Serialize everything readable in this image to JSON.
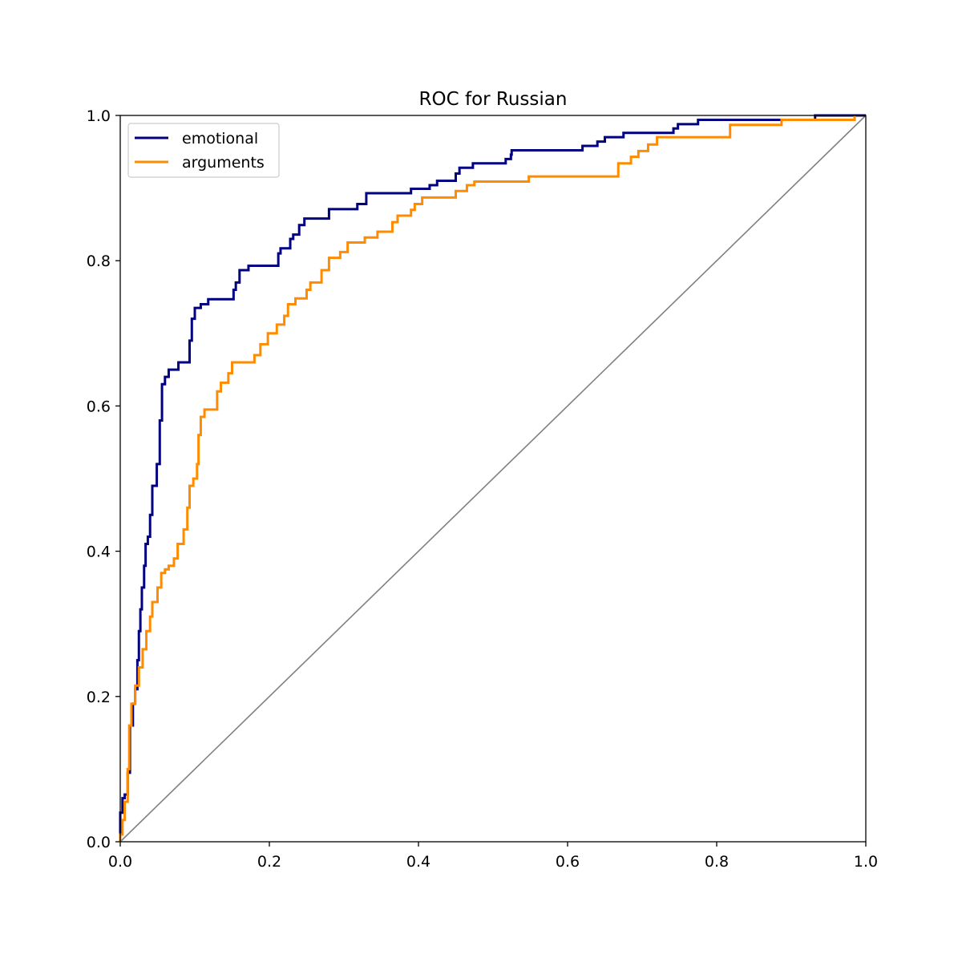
{
  "chart_data": {
    "type": "line",
    "title": "ROC for Russian",
    "xlabel": "",
    "ylabel": "",
    "xlim": [
      0.0,
      1.0
    ],
    "ylim": [
      0.0,
      1.0
    ],
    "x_ticks": [
      "0.0",
      "0.2",
      "0.4",
      "0.6",
      "0.8",
      "1.0"
    ],
    "y_ticks": [
      "0.0",
      "0.2",
      "0.4",
      "0.6",
      "0.8",
      "1.0"
    ],
    "grid": false,
    "legend_position": "upper-left",
    "diagonal_reference": {
      "color": "#808080",
      "points": [
        [
          0,
          0
        ],
        [
          1,
          1
        ]
      ]
    },
    "series": [
      {
        "name": "emotional",
        "color": "#000080",
        "points": [
          [
            0.0,
            0.0
          ],
          [
            0.0,
            0.04
          ],
          [
            0.003,
            0.04
          ],
          [
            0.003,
            0.06
          ],
          [
            0.006,
            0.06
          ],
          [
            0.006,
            0.065
          ],
          [
            0.01,
            0.065
          ],
          [
            0.01,
            0.095
          ],
          [
            0.013,
            0.095
          ],
          [
            0.013,
            0.16
          ],
          [
            0.017,
            0.16
          ],
          [
            0.017,
            0.19
          ],
          [
            0.02,
            0.19
          ],
          [
            0.02,
            0.21
          ],
          [
            0.023,
            0.21
          ],
          [
            0.023,
            0.25
          ],
          [
            0.025,
            0.25
          ],
          [
            0.025,
            0.29
          ],
          [
            0.027,
            0.29
          ],
          [
            0.027,
            0.32
          ],
          [
            0.029,
            0.32
          ],
          [
            0.029,
            0.35
          ],
          [
            0.032,
            0.35
          ],
          [
            0.032,
            0.38
          ],
          [
            0.034,
            0.38
          ],
          [
            0.034,
            0.41
          ],
          [
            0.037,
            0.41
          ],
          [
            0.037,
            0.42
          ],
          [
            0.04,
            0.42
          ],
          [
            0.04,
            0.45
          ],
          [
            0.043,
            0.45
          ],
          [
            0.043,
            0.49
          ],
          [
            0.049,
            0.49
          ],
          [
            0.049,
            0.52
          ],
          [
            0.053,
            0.52
          ],
          [
            0.053,
            0.58
          ],
          [
            0.056,
            0.58
          ],
          [
            0.056,
            0.63
          ],
          [
            0.06,
            0.63
          ],
          [
            0.06,
            0.64
          ],
          [
            0.065,
            0.64
          ],
          [
            0.065,
            0.65
          ],
          [
            0.078,
            0.65
          ],
          [
            0.078,
            0.66
          ],
          [
            0.093,
            0.66
          ],
          [
            0.093,
            0.69
          ],
          [
            0.096,
            0.69
          ],
          [
            0.096,
            0.72
          ],
          [
            0.1,
            0.72
          ],
          [
            0.1,
            0.735
          ],
          [
            0.108,
            0.735
          ],
          [
            0.108,
            0.74
          ],
          [
            0.118,
            0.74
          ],
          [
            0.118,
            0.747
          ],
          [
            0.152,
            0.747
          ],
          [
            0.152,
            0.76
          ],
          [
            0.155,
            0.76
          ],
          [
            0.155,
            0.77
          ],
          [
            0.16,
            0.77
          ],
          [
            0.16,
            0.787
          ],
          [
            0.172,
            0.787
          ],
          [
            0.172,
            0.793
          ],
          [
            0.212,
            0.793
          ],
          [
            0.212,
            0.81
          ],
          [
            0.215,
            0.81
          ],
          [
            0.215,
            0.817
          ],
          [
            0.228,
            0.817
          ],
          [
            0.228,
            0.83
          ],
          [
            0.232,
            0.83
          ],
          [
            0.232,
            0.836
          ],
          [
            0.24,
            0.836
          ],
          [
            0.24,
            0.849
          ],
          [
            0.247,
            0.849
          ],
          [
            0.247,
            0.858
          ],
          [
            0.28,
            0.858
          ],
          [
            0.28,
            0.871
          ],
          [
            0.318,
            0.871
          ],
          [
            0.318,
            0.878
          ],
          [
            0.33,
            0.878
          ],
          [
            0.33,
            0.893
          ],
          [
            0.39,
            0.893
          ],
          [
            0.39,
            0.899
          ],
          [
            0.415,
            0.899
          ],
          [
            0.415,
            0.904
          ],
          [
            0.425,
            0.904
          ],
          [
            0.425,
            0.91
          ],
          [
            0.45,
            0.91
          ],
          [
            0.45,
            0.92
          ],
          [
            0.455,
            0.92
          ],
          [
            0.455,
            0.928
          ],
          [
            0.473,
            0.928
          ],
          [
            0.473,
            0.934
          ],
          [
            0.517,
            0.934
          ],
          [
            0.517,
            0.94
          ],
          [
            0.524,
            0.94
          ],
          [
            0.524,
            0.946
          ],
          [
            0.525,
            0.946
          ],
          [
            0.525,
            0.952
          ],
          [
            0.62,
            0.952
          ],
          [
            0.62,
            0.958
          ],
          [
            0.64,
            0.958
          ],
          [
            0.64,
            0.964
          ],
          [
            0.65,
            0.964
          ],
          [
            0.65,
            0.97
          ],
          [
            0.675,
            0.97
          ],
          [
            0.675,
            0.976
          ],
          [
            0.742,
            0.976
          ],
          [
            0.742,
            0.982
          ],
          [
            0.748,
            0.982
          ],
          [
            0.748,
            0.988
          ],
          [
            0.775,
            0.988
          ],
          [
            0.775,
            0.994
          ],
          [
            0.932,
            0.994
          ],
          [
            0.932,
            1.0
          ],
          [
            1.0,
            1.0
          ]
        ]
      },
      {
        "name": "arguments",
        "color": "#FF8C00",
        "points": [
          [
            0.0,
            0.0
          ],
          [
            0.0,
            0.01
          ],
          [
            0.003,
            0.01
          ],
          [
            0.003,
            0.03
          ],
          [
            0.006,
            0.03
          ],
          [
            0.006,
            0.055
          ],
          [
            0.01,
            0.055
          ],
          [
            0.01,
            0.1
          ],
          [
            0.012,
            0.1
          ],
          [
            0.012,
            0.16
          ],
          [
            0.015,
            0.16
          ],
          [
            0.015,
            0.19
          ],
          [
            0.02,
            0.19
          ],
          [
            0.02,
            0.215
          ],
          [
            0.025,
            0.215
          ],
          [
            0.025,
            0.24
          ],
          [
            0.03,
            0.24
          ],
          [
            0.03,
            0.265
          ],
          [
            0.035,
            0.265
          ],
          [
            0.035,
            0.29
          ],
          [
            0.04,
            0.29
          ],
          [
            0.04,
            0.31
          ],
          [
            0.043,
            0.31
          ],
          [
            0.043,
            0.33
          ],
          [
            0.05,
            0.33
          ],
          [
            0.05,
            0.35
          ],
          [
            0.055,
            0.35
          ],
          [
            0.055,
            0.37
          ],
          [
            0.06,
            0.37
          ],
          [
            0.06,
            0.375
          ],
          [
            0.065,
            0.375
          ],
          [
            0.065,
            0.38
          ],
          [
            0.072,
            0.38
          ],
          [
            0.072,
            0.39
          ],
          [
            0.077,
            0.39
          ],
          [
            0.077,
            0.41
          ],
          [
            0.085,
            0.41
          ],
          [
            0.085,
            0.43
          ],
          [
            0.09,
            0.43
          ],
          [
            0.09,
            0.46
          ],
          [
            0.093,
            0.46
          ],
          [
            0.093,
            0.49
          ],
          [
            0.098,
            0.49
          ],
          [
            0.098,
            0.5
          ],
          [
            0.103,
            0.5
          ],
          [
            0.103,
            0.52
          ],
          [
            0.105,
            0.52
          ],
          [
            0.105,
            0.56
          ],
          [
            0.108,
            0.56
          ],
          [
            0.108,
            0.585
          ],
          [
            0.113,
            0.585
          ],
          [
            0.113,
            0.595
          ],
          [
            0.13,
            0.595
          ],
          [
            0.13,
            0.62
          ],
          [
            0.135,
            0.62
          ],
          [
            0.135,
            0.632
          ],
          [
            0.145,
            0.632
          ],
          [
            0.145,
            0.645
          ],
          [
            0.15,
            0.645
          ],
          [
            0.15,
            0.66
          ],
          [
            0.18,
            0.66
          ],
          [
            0.18,
            0.67
          ],
          [
            0.188,
            0.67
          ],
          [
            0.188,
            0.685
          ],
          [
            0.198,
            0.685
          ],
          [
            0.198,
            0.7
          ],
          [
            0.21,
            0.7
          ],
          [
            0.21,
            0.712
          ],
          [
            0.22,
            0.712
          ],
          [
            0.22,
            0.724
          ],
          [
            0.225,
            0.724
          ],
          [
            0.225,
            0.74
          ],
          [
            0.235,
            0.74
          ],
          [
            0.235,
            0.748
          ],
          [
            0.25,
            0.748
          ],
          [
            0.25,
            0.76
          ],
          [
            0.255,
            0.76
          ],
          [
            0.255,
            0.77
          ],
          [
            0.27,
            0.77
          ],
          [
            0.27,
            0.787
          ],
          [
            0.28,
            0.787
          ],
          [
            0.28,
            0.804
          ],
          [
            0.295,
            0.804
          ],
          [
            0.295,
            0.812
          ],
          [
            0.305,
            0.812
          ],
          [
            0.305,
            0.825
          ],
          [
            0.328,
            0.825
          ],
          [
            0.328,
            0.832
          ],
          [
            0.345,
            0.832
          ],
          [
            0.345,
            0.84
          ],
          [
            0.365,
            0.84
          ],
          [
            0.365,
            0.853
          ],
          [
            0.372,
            0.853
          ],
          [
            0.372,
            0.862
          ],
          [
            0.39,
            0.862
          ],
          [
            0.39,
            0.87
          ],
          [
            0.395,
            0.87
          ],
          [
            0.395,
            0.878
          ],
          [
            0.405,
            0.878
          ],
          [
            0.405,
            0.887
          ],
          [
            0.45,
            0.887
          ],
          [
            0.45,
            0.896
          ],
          [
            0.465,
            0.896
          ],
          [
            0.465,
            0.904
          ],
          [
            0.475,
            0.904
          ],
          [
            0.475,
            0.909
          ],
          [
            0.548,
            0.909
          ],
          [
            0.548,
            0.916
          ],
          [
            0.668,
            0.916
          ],
          [
            0.668,
            0.934
          ],
          [
            0.685,
            0.934
          ],
          [
            0.685,
            0.943
          ],
          [
            0.695,
            0.943
          ],
          [
            0.695,
            0.951
          ],
          [
            0.708,
            0.951
          ],
          [
            0.708,
            0.96
          ],
          [
            0.72,
            0.96
          ],
          [
            0.72,
            0.97
          ],
          [
            0.818,
            0.97
          ],
          [
            0.818,
            0.987
          ],
          [
            0.887,
            0.987
          ],
          [
            0.887,
            0.994
          ],
          [
            0.985,
            0.994
          ],
          [
            0.985,
            1.0
          ]
        ]
      }
    ]
  }
}
